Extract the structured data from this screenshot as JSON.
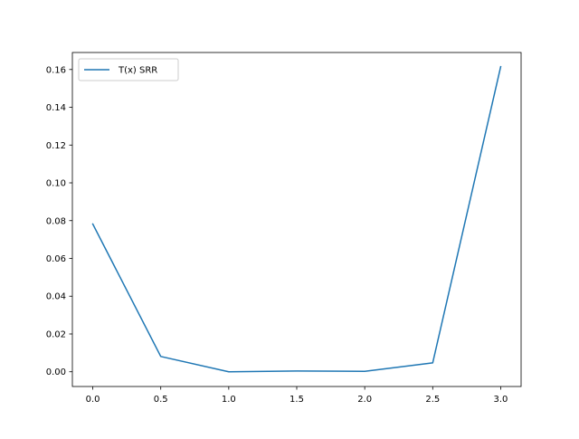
{
  "chart_data": {
    "type": "line",
    "title": "",
    "xlabel": "",
    "ylabel": "",
    "xlim": [
      -0.15,
      3.15
    ],
    "ylim": [
      -0.0078,
      0.169
    ],
    "xticks": [
      0.0,
      0.5,
      1.0,
      1.5,
      2.0,
      2.5,
      3.0
    ],
    "xtick_labels": [
      "0.0",
      "0.5",
      "1.0",
      "1.5",
      "2.0",
      "2.5",
      "3.0"
    ],
    "yticks": [
      0.0,
      0.02,
      0.04,
      0.06,
      0.08,
      0.1,
      0.12,
      0.14,
      0.16
    ],
    "ytick_labels": [
      "0.00",
      "0.02",
      "0.04",
      "0.06",
      "0.08",
      "0.10",
      "0.12",
      "0.14",
      "0.16"
    ],
    "grid": false,
    "legend": "top-left",
    "series": [
      {
        "name": "T(x) SRR",
        "color": "#1f77b4",
        "x": [
          0.0,
          0.5,
          1.0,
          1.5,
          2.0,
          2.5,
          3.0
        ],
        "y": [
          0.0782,
          0.0081,
          0.0,
          0.0004,
          0.0002,
          0.0047,
          0.1615
        ]
      }
    ]
  }
}
